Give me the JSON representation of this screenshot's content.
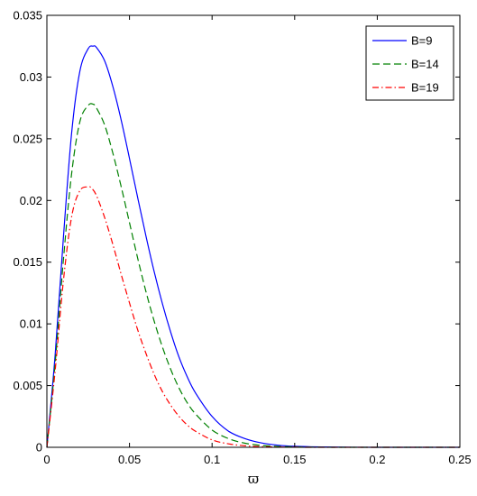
{
  "chart_data": {
    "type": "line",
    "title": "",
    "xlabel": "ϖ",
    "ylabel": "",
    "xlim": [
      0,
      0.25
    ],
    "ylim": [
      0,
      0.035
    ],
    "xticks": [
      0,
      0.05,
      0.1,
      0.15,
      0.2,
      0.25
    ],
    "xtick_labels": [
      "0",
      "0.05",
      "0.1",
      "0.15",
      "0.2",
      "0.25"
    ],
    "yticks": [
      0,
      0.005,
      0.01,
      0.015,
      0.02,
      0.025,
      0.03,
      0.035
    ],
    "ytick_labels": [
      "0",
      "0.005",
      "0.01",
      "0.015",
      "0.02",
      "0.025",
      "0.03",
      "0.035"
    ],
    "grid": false,
    "legend_position": "top-right",
    "series": [
      {
        "name": "B=9",
        "color": "#0000ff",
        "dash": "solid",
        "x": [
          0,
          0.005,
          0.01,
          0.015,
          0.02,
          0.025,
          0.028,
          0.03,
          0.035,
          0.04,
          0.045,
          0.05,
          0.055,
          0.06,
          0.065,
          0.07,
          0.075,
          0.08,
          0.085,
          0.09,
          0.1,
          0.11,
          0.12,
          0.13,
          0.14,
          0.15,
          0.16,
          0.18,
          0.2,
          0.25
        ],
        "y": [
          0,
          0.0075,
          0.017,
          0.0255,
          0.0305,
          0.0323,
          0.0325,
          0.0324,
          0.0313,
          0.0292,
          0.0265,
          0.0234,
          0.0202,
          0.0171,
          0.0142,
          0.0116,
          0.0093,
          0.0073,
          0.0057,
          0.0044,
          0.0025,
          0.0013,
          0.0007,
          0.00035,
          0.00017,
          8e-05,
          4e-05,
          1e-05,
          0,
          0
        ]
      },
      {
        "name": "B=14",
        "color": "#008000",
        "dash": "dashed",
        "x": [
          0,
          0.005,
          0.01,
          0.015,
          0.02,
          0.025,
          0.028,
          0.03,
          0.035,
          0.04,
          0.045,
          0.05,
          0.055,
          0.06,
          0.065,
          0.07,
          0.075,
          0.08,
          0.085,
          0.09,
          0.1,
          0.11,
          0.12,
          0.13,
          0.14,
          0.15,
          0.16,
          0.18,
          0.2,
          0.25
        ],
        "y": [
          0,
          0.0068,
          0.0152,
          0.0222,
          0.0264,
          0.0277,
          0.0278,
          0.0275,
          0.0261,
          0.0238,
          0.0211,
          0.0182,
          0.0153,
          0.0126,
          0.0102,
          0.0081,
          0.0063,
          0.0048,
          0.0036,
          0.0027,
          0.0014,
          0.0007,
          0.00033,
          0.00015,
          7e-05,
          3e-05,
          1e-05,
          0,
          0,
          0
        ]
      },
      {
        "name": "B=19",
        "color": "#ff0000",
        "dash": "dashdot",
        "x": [
          0,
          0.005,
          0.01,
          0.015,
          0.02,
          0.025,
          0.027,
          0.03,
          0.035,
          0.04,
          0.045,
          0.05,
          0.055,
          0.06,
          0.065,
          0.07,
          0.075,
          0.08,
          0.085,
          0.09,
          0.1,
          0.11,
          0.12,
          0.13,
          0.14,
          0.15,
          0.16,
          0.18,
          0.2,
          0.25
        ],
        "y": [
          0,
          0.0062,
          0.0135,
          0.0187,
          0.0208,
          0.0211,
          0.021,
          0.0204,
          0.0186,
          0.0164,
          0.014,
          0.0117,
          0.0095,
          0.0076,
          0.0059,
          0.0045,
          0.0034,
          0.0025,
          0.0018,
          0.0013,
          0.0006,
          0.00028,
          0.00012,
          5e-05,
          2e-05,
          1e-05,
          0,
          0,
          0,
          0
        ]
      }
    ]
  }
}
